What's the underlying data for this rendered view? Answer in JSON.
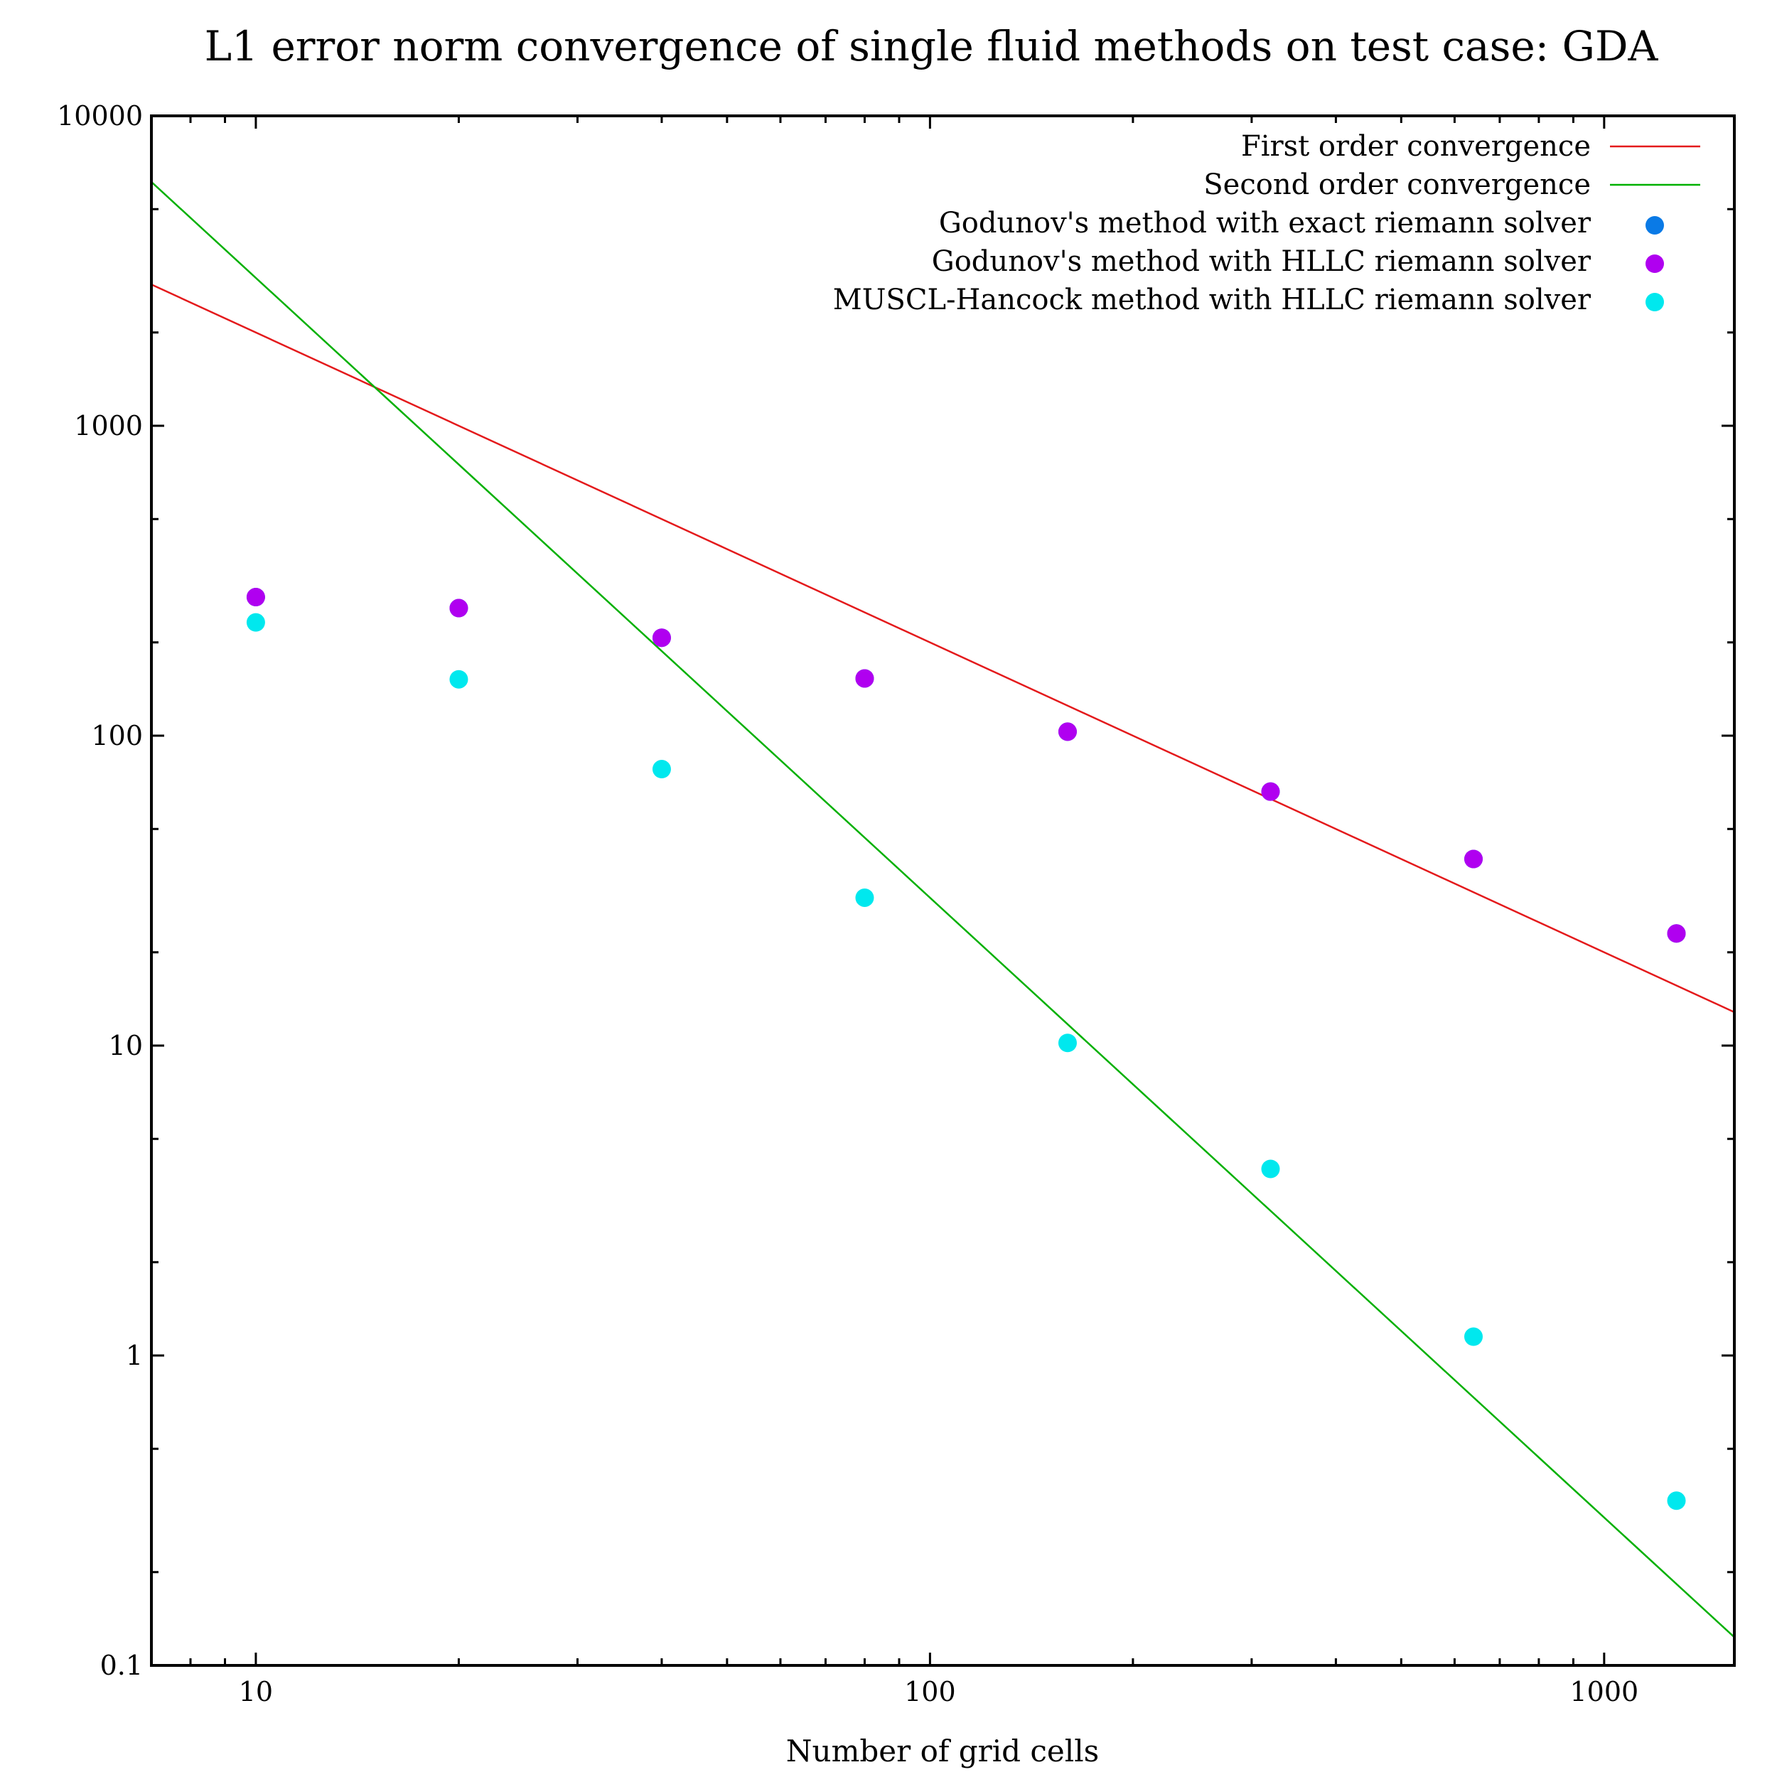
{
  "chart_data": {
    "type": "scatter",
    "title": "L1 error norm convergence of single fluid methods on test case: GDA",
    "xlabel": "Number of grid cells",
    "ylabel": "",
    "xscale": "log",
    "yscale": "log",
    "xlim": [
      7,
      1560
    ],
    "ylim": [
      0.1,
      10000
    ],
    "x_major_ticks": [
      10,
      100,
      1000
    ],
    "x_tick_labels": [
      "10",
      "100",
      "1000"
    ],
    "y_major_ticks": [
      0.1,
      1,
      10,
      100,
      1000,
      10000
    ],
    "y_tick_labels": [
      "0.1",
      "1",
      "10",
      "100",
      "1000",
      "10000"
    ],
    "grid": false,
    "legend_position": "top-right",
    "series": [
      {
        "name": "First order convergence",
        "kind": "line",
        "color": "#e41a1c",
        "x": [
          7,
          1560
        ],
        "y": [
          2857.1,
          12.82
        ]
      },
      {
        "name": "Second order convergence",
        "kind": "line",
        "color": "#00b000",
        "x": [
          7,
          1560
        ],
        "y": [
          6122.4,
          0.1233
        ]
      },
      {
        "name": "Godunov's method with exact riemann solver",
        "kind": "points",
        "color": "#0a7ae6",
        "x": [
          10,
          20,
          40,
          80,
          160,
          320,
          640,
          1280
        ],
        "y": [
          280,
          258,
          207,
          153,
          103,
          66,
          40,
          23
        ]
      },
      {
        "name": "Godunov's method with HLLC riemann solver",
        "kind": "points",
        "color": "#b000f0",
        "x": [
          10,
          20,
          40,
          80,
          160,
          320,
          640,
          1280
        ],
        "y": [
          280,
          258,
          207,
          153,
          103,
          66,
          40,
          23
        ]
      },
      {
        "name": "MUSCL-Hancock method with HLLC riemann solver",
        "kind": "points",
        "color": "#00e8ee",
        "x": [
          10,
          20,
          40,
          80,
          160,
          320,
          640,
          1280
        ],
        "y": [
          232,
          152,
          78,
          30,
          10.2,
          4.0,
          1.15,
          0.34
        ]
      }
    ]
  }
}
